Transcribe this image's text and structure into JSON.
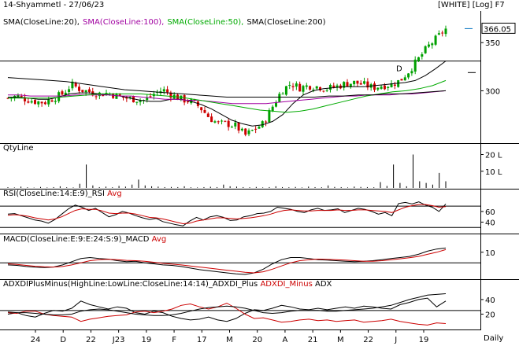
{
  "header": {
    "title": "14-Shyammetl - 27/06/23",
    "mode": "[WHITE] [Log] F7",
    "legend": [
      {
        "text": "SMA(CloseLine:20),",
        "color": "#000000"
      },
      {
        "text": "SMA(CloseLine:100),",
        "color": "#a000a0"
      },
      {
        "text": "SMA(CloseLine:50),",
        "color": "#00aa00"
      },
      {
        "text": "SMA(CloseLine:200)",
        "color": "#000000"
      }
    ]
  },
  "panes": {
    "qty": {
      "title": "QtyLine"
    },
    "rsi": {
      "title": "RSI(CloseLine:14:E:9)_RSI",
      "avg": "Avg"
    },
    "macd": {
      "title": "MACD(CloseLine:E:9:E:24:S:9)_MACD",
      "avg": "Avg"
    },
    "adx": {
      "title": "ADXDIPlusMinus(HighLine:LowLine:CloseLine:14:14)_ADXDI_Plus",
      "minus": "ADXDI_Minus",
      "adx": "ADX"
    }
  },
  "footer": {
    "period": "Daily"
  },
  "colors": {
    "bull": "#00a000",
    "bear": "#cc0000",
    "sma100": "#a000a0",
    "sma50": "#00aa00",
    "signal": "#cc0000"
  },
  "chart_data": [
    {
      "type": "candlestick",
      "title": "14-Shyammetl - 27/06/23",
      "scale": "log",
      "y_ticks": [
        300,
        350
      ],
      "last_price": "366.05",
      "x_labels": [
        "24",
        "D",
        "22",
        "J23",
        "19",
        "F",
        "17",
        "M",
        "20",
        "A",
        "21",
        "M",
        "22",
        "J",
        "19"
      ],
      "annotations": [
        "D"
      ],
      "close_path": [
        293,
        295,
        292,
        290,
        289,
        293,
        297,
        306,
        301,
        299,
        297,
        298,
        295,
        293,
        292,
        291,
        297,
        301,
        296,
        292,
        290,
        285,
        276,
        270,
        270,
        268,
        260,
        265,
        270,
        285,
        300,
        307,
        303,
        305,
        304,
        302,
        304,
        307,
        308,
        306,
        303,
        305,
        306,
        310,
        320,
        332,
        345,
        355,
        366.05
      ],
      "series": [
        {
          "name": "SMA(CloseLine:20)",
          "values": [
            294,
            294,
            293,
            292,
            292,
            294,
            297,
            298,
            298,
            297,
            296,
            295,
            293,
            291,
            290,
            290,
            292,
            292,
            290,
            287,
            283,
            278,
            273,
            270,
            268,
            269,
            272,
            278,
            288,
            296,
            300,
            302,
            303,
            304,
            304,
            304,
            305,
            306,
            307,
            308,
            310,
            315,
            322,
            330
          ]
        },
        {
          "name": "SMA(CloseLine:100)",
          "values": [
            296,
            296,
            295,
            295,
            295,
            295,
            296,
            296,
            296,
            296,
            295,
            295,
            294,
            293,
            292,
            292,
            291,
            291,
            290,
            289,
            288,
            288,
            288,
            288,
            289,
            290,
            291,
            292,
            293,
            294,
            295,
            295,
            296,
            296,
            296,
            297,
            297,
            298,
            299,
            300
          ]
        },
        {
          "name": "SMA(CloseLine:50)",
          "values": [
            293,
            293,
            293,
            293,
            294,
            295,
            296,
            297,
            297,
            297,
            297,
            296,
            295,
            294,
            292,
            290,
            288,
            286,
            284,
            282,
            281,
            280,
            281,
            283,
            286,
            289,
            292,
            295,
            297,
            299,
            300,
            302,
            305,
            310
          ]
        },
        {
          "name": "SMA(CloseLine:200)",
          "values": [
            313,
            312,
            311,
            310,
            309,
            307,
            305,
            303,
            301,
            300,
            299,
            298,
            297,
            296,
            295,
            294,
            294,
            294,
            294,
            294,
            294,
            294,
            295,
            295,
            296,
            296,
            297,
            297,
            298,
            299,
            300
          ]
        }
      ]
    },
    {
      "type": "bar",
      "title": "QtyLine",
      "y_ticks": [
        "10 L",
        "20 L"
      ],
      "values": [
        0.5,
        0.3,
        0.8,
        0.4,
        0.2,
        0.6,
        0.3,
        0.5,
        1.0,
        0.4,
        0.3,
        2.5,
        14,
        1.5,
        0.5,
        0.8,
        0.4,
        1.2,
        0.8,
        2.0,
        5.0,
        1.5,
        1.0,
        0.8,
        0.5,
        0.6,
        0.5,
        1.0,
        0.4,
        0.3,
        0.5,
        0.7,
        0.5,
        2.0,
        1.0,
        0.8,
        0.5,
        0.4,
        0.6,
        0.3,
        0.5,
        1.0,
        0.5,
        0.4,
        0.6,
        0.3,
        0.8,
        0.5,
        0.4,
        1.5,
        0.6,
        0.5,
        0.3,
        0.8,
        0.6,
        0.5,
        0.4,
        3.5,
        1.2,
        14,
        3.0,
        1.0,
        20,
        4.0,
        3.0,
        2.0,
        9,
        4.0
      ]
    },
    {
      "type": "line",
      "title": "RSI(CloseLine:14:E:9)_RSI",
      "y_ticks": [
        40,
        60
      ],
      "series": [
        {
          "name": "_RSI",
          "values": [
            55,
            56,
            52,
            48,
            44,
            42,
            38,
            45,
            55,
            65,
            72,
            68,
            62,
            66,
            58,
            50,
            54,
            60,
            57,
            52,
            48,
            45,
            47,
            41,
            38,
            35,
            33,
            42,
            49,
            44,
            50,
            52,
            49,
            43,
            44,
            50,
            52,
            56,
            57,
            60,
            68,
            66,
            64,
            60,
            58,
            63,
            66,
            62,
            63,
            65,
            58,
            62,
            66,
            64,
            60,
            55,
            58,
            52,
            75,
            77,
            74,
            78,
            72,
            68,
            60,
            74
          ]
        },
        {
          "name": "Avg",
          "values": [
            53,
            54,
            53,
            51,
            48,
            46,
            44,
            46,
            50,
            56,
            62,
            65,
            64,
            64,
            61,
            57,
            56,
            57,
            57,
            55,
            52,
            49,
            48,
            46,
            43,
            40,
            37,
            38,
            42,
            44,
            46,
            48,
            48,
            47,
            46,
            47,
            48,
            50,
            52,
            55,
            59,
            62,
            63,
            62,
            61,
            61,
            62,
            62,
            62,
            63,
            62,
            62,
            63,
            63,
            62,
            61,
            60,
            58,
            63,
            68,
            71,
            73,
            73,
            71,
            68,
            69
          ]
        }
      ]
    },
    {
      "type": "line",
      "title": "MACD(CloseLine:E:9:E:24:S:9)_MACD",
      "y_ticks": [
        10
      ],
      "series": [
        {
          "name": "_MACD",
          "values": [
            -2,
            -2.5,
            -3.5,
            -4.2,
            -4.5,
            -4,
            -2,
            1,
            4,
            5,
            4,
            3.5,
            2,
            1,
            1.5,
            0,
            -1,
            -2,
            -2.5,
            -3.5,
            -5,
            -6.5,
            -7.5,
            -8.5,
            -9.5,
            -10.5,
            -11,
            -9.5,
            -6,
            -1,
            3,
            5,
            5,
            4,
            3,
            2.5,
            2,
            1.5,
            1,
            1.5,
            2,
            3,
            4,
            5,
            6,
            8,
            11,
            13,
            14
          ]
        },
        {
          "name": "Avg",
          "values": [
            -1,
            -1.5,
            -2.5,
            -3.3,
            -3.8,
            -4,
            -3.5,
            -2,
            0,
            2,
            3,
            3.3,
            3,
            2.3,
            2,
            1.5,
            0.5,
            -0.5,
            -1.3,
            -2,
            -3,
            -4,
            -5,
            -6,
            -7,
            -8,
            -9,
            -9.5,
            -8.5,
            -6,
            -3,
            0,
            2,
            3,
            3.5,
            3.2,
            3,
            2.5,
            2,
            1.5,
            1.5,
            2,
            2.8,
            3.8,
            4.8,
            6,
            8,
            10,
            12.5
          ]
        }
      ]
    },
    {
      "type": "line",
      "title": "ADXDIPlusMinus(HighLine:LowLine:CloseLine:14:14)_ADXDI_Plus",
      "y_ticks": [
        20,
        40
      ],
      "series": [
        {
          "name": "_ADXDI_Plus",
          "values": [
            20,
            22,
            18,
            16,
            21,
            25,
            24,
            28,
            38,
            33,
            30,
            27,
            30,
            28,
            22,
            20,
            24,
            22,
            17,
            14,
            12,
            13,
            16,
            12,
            10,
            14,
            21,
            26,
            25,
            28,
            32,
            30,
            27,
            26,
            28,
            26,
            28,
            30,
            28,
            31,
            30,
            28,
            27,
            33,
            36,
            40,
            42,
            30,
            38
          ]
        },
        {
          "name": "ADXDI_Minus",
          "values": [
            22,
            21,
            24,
            24,
            20,
            18,
            17,
            16,
            10,
            13,
            15,
            17,
            18,
            19,
            23,
            24,
            22,
            24,
            27,
            32,
            34,
            30,
            27,
            30,
            35,
            28,
            20,
            14,
            15,
            12,
            9,
            10,
            12,
            13,
            11,
            12,
            10,
            11,
            12,
            9,
            10,
            11,
            13,
            10,
            8,
            6,
            5,
            8,
            7
          ]
        },
        {
          "name": "ADX",
          "values": [
            23,
            22,
            22,
            21,
            20,
            19,
            19,
            20,
            24,
            26,
            27,
            26,
            24,
            22,
            20,
            19,
            18,
            18,
            19,
            21,
            24,
            27,
            29,
            30,
            31,
            30,
            28,
            25,
            22,
            21,
            22,
            24,
            25,
            25,
            25,
            24,
            24,
            25,
            26,
            27,
            28,
            30,
            32,
            36,
            40,
            43,
            46,
            47,
            48
          ]
        }
      ]
    }
  ]
}
